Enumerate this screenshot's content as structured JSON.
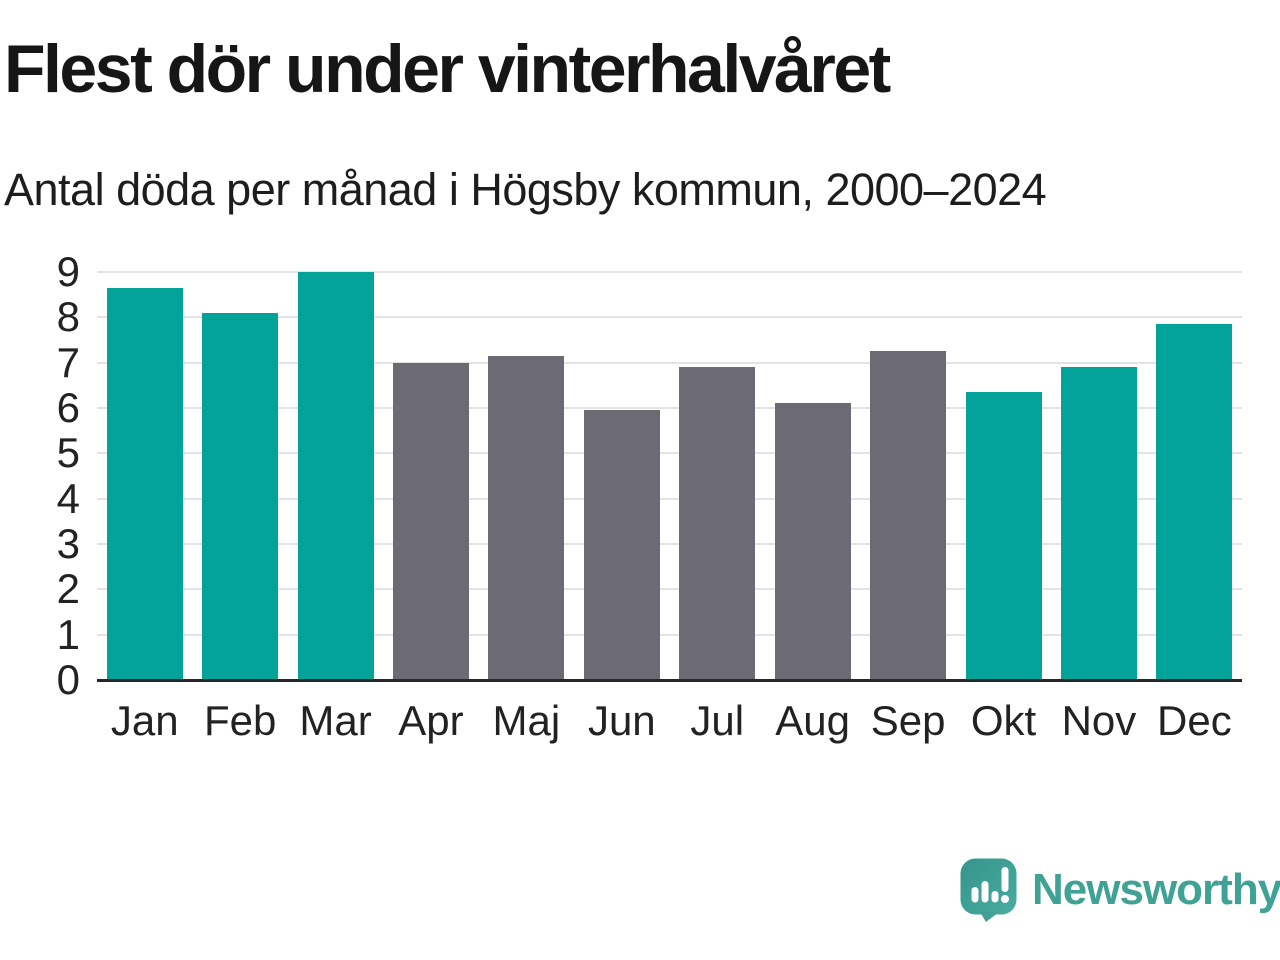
{
  "chart_data": {
    "type": "bar",
    "title": "Flest dör under vinterhalvåret",
    "subtitle": "Antal döda per månad i Högsby kommun, 2000–2024",
    "categories": [
      "Jan",
      "Feb",
      "Mar",
      "Apr",
      "Maj",
      "Jun",
      "Jul",
      "Aug",
      "Sep",
      "Okt",
      "Nov",
      "Dec"
    ],
    "values": [
      8.65,
      8.1,
      9.0,
      7.0,
      7.15,
      5.95,
      6.9,
      6.1,
      7.25,
      6.35,
      6.9,
      7.85
    ],
    "bar_color_keys": [
      "highlight",
      "highlight",
      "highlight",
      "muted",
      "muted",
      "muted",
      "muted",
      "muted",
      "muted",
      "highlight",
      "highlight",
      "highlight"
    ],
    "xlabel": "",
    "ylabel": "",
    "ylim": [
      0,
      9
    ],
    "yticks": [
      0,
      1,
      2,
      3,
      4,
      5,
      6,
      7,
      8,
      9
    ],
    "grid": true,
    "legend_position": "none",
    "colors": {
      "highlight": "#04A39A",
      "muted": "#6C6B73",
      "gridline": "#E3E3E3",
      "axis": "#27262C",
      "tick_text": "#222222",
      "title_text": "#161616",
      "subtitle_text": "#1D1D1D"
    }
  },
  "branding": {
    "logo_text": "Newsworthy",
    "logo_text_color": "#3FA294",
    "logo_mark": "newsworthy-speech-bubble-bar-chart-icon",
    "logo_mark_color_top": "#35948B",
    "logo_mark_color_bottom": "#49ADA0"
  }
}
